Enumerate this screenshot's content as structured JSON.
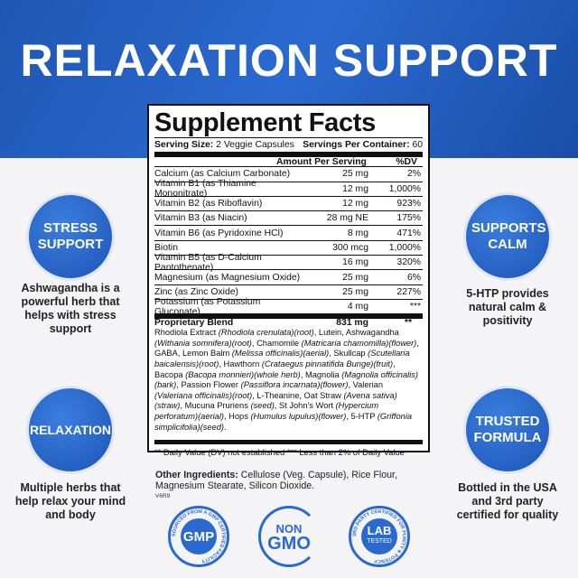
{
  "header": {
    "title": "RELAXATION SUPPORT"
  },
  "label": {
    "title": "Supplement Facts",
    "serving_size_label": "Serving Size:",
    "serving_size": "2 Veggie Capsules",
    "servings_label": "Servings Per Container:",
    "servings": "60",
    "col_amount": "Amount Per Serving",
    "col_dv": "%DV",
    "rows": [
      {
        "name": "Calcium (as Calcium Carbonate)",
        "amount": "25 mg",
        "dv": "2%"
      },
      {
        "name": "Vitamin B1 (as Thiamine Mononitrate)",
        "amount": "12 mg",
        "dv": "1,000%"
      },
      {
        "name": "Vitamin B2 (as Riboflavin)",
        "amount": "12 mg",
        "dv": "923%"
      },
      {
        "name": "Vitamin B3 (as Niacin)",
        "amount": "28 mg NE",
        "dv": "175%"
      },
      {
        "name": "Vitamin B6 (as Pyridoxine HCl)",
        "amount": "8 mg",
        "dv": "471%"
      },
      {
        "name": "Biotin",
        "amount": "300 mcg",
        "dv": "1,000%"
      },
      {
        "name": "Vitamin B5 (as D-Calcium Pantothenate)",
        "amount": "16 mg",
        "dv": "320%"
      },
      {
        "name": "Magnesium (as Magnesium Oxide)",
        "amount": "25 mg",
        "dv": "6%"
      },
      {
        "name": "Zinc (as Zinc Oxide)",
        "amount": "25 mg",
        "dv": "227%"
      },
      {
        "name": "Potassium (as Potassium Gluconate)",
        "amount": "4 mg",
        "dv": "***"
      }
    ],
    "blend": {
      "name": "Proprietary Blend",
      "amount": "831 mg",
      "dv": "**",
      "ingredients": "Rhodiola Extract (Rhodiola crenulata)(root), Lutein, Ashwagandha (Withania somnifera)(root), Chamomile (Matricaria chamomilla)(flower), GABA, Lemon Balm (Melissa officinalis)(aerial), Skullcap (Scutellaria baicalensis)(root), Hawthorn (Crataegus pinnatifida Bunge)(fruit), Bacopa (Bacopa monnieri)(whole herb), Magnolia (Magnolia officinalis)(bark), Passion Flower (Passiflora incarnata)(flower), Valerian (Valeriana officinalis)(root), L-Theanine, Oat Straw (Avena sativa)(straw), Mucuna Pruriens (seed), St John's Wort (Hypercium perforatum)(aerial), Hops (Humulus lupulus)(flower), 5-HTP (Griffonia simplicifolia)(seed)."
    },
    "footnote": "** Daily Value (DV) not established *** Less than 2% of Daily Value"
  },
  "other": {
    "label": "Other Ingredients:",
    "text": " Cellulose (Veg. Capsule), Rice Flour, Magnesium Stearate, Silicon Dioxide.",
    "version": "V6R9"
  },
  "features": [
    {
      "title": "STRESS SUPPORT",
      "desc": "Ashwagandha is a powerful herb that helps with stress support"
    },
    {
      "title": "RELAXATION",
      "desc": "Multiple herbs that help relax your mind and body"
    },
    {
      "title": "SUPPORTS CALM",
      "desc": "5-HTP provides natural calm & positivity"
    },
    {
      "title": "TRUSTED FORMULA",
      "desc": "Bottled in the USA and 3rd party certified for quality"
    }
  ],
  "badges": [
    {
      "main": "GMP",
      "ring": "SOURCED FROM A GMP CERTIFIED FACILITY"
    },
    {
      "top": "NON",
      "main": "GMO"
    },
    {
      "main": "LAB",
      "sub": "TESTED",
      "ring": "3RD PARTY CERTIFIED FOR PURITY & POTENCY"
    }
  ],
  "colors": {
    "brand": "#2a6ad0",
    "background": "#f4f4f6"
  }
}
